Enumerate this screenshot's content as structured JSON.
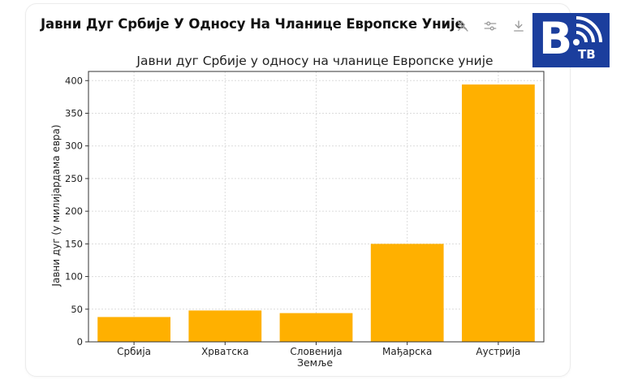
{
  "card": {
    "title": "Јавни Дуг Србије У Односу На Чланице Европске Уније"
  },
  "toolbar": {
    "icons": [
      "pin-off-icon",
      "sliders-icon",
      "download-icon"
    ]
  },
  "logo": {
    "letter": "B",
    "sub": "ТВ",
    "bg_color": "#1b3e9d"
  },
  "chart_data": {
    "type": "bar",
    "title": "Јавни дуг Србије у односу на чланице Европске уније",
    "xlabel": "Земље",
    "ylabel": "Јавни дуг (у милијардама евра)",
    "categories": [
      "Србија",
      "Хрватска",
      "Словенија",
      "Мађарска",
      "Аустрија"
    ],
    "values": [
      38,
      48,
      44,
      150,
      394
    ],
    "ylim": [
      0,
      414
    ],
    "yticks": [
      0,
      50,
      100,
      150,
      200,
      250,
      300,
      350,
      400
    ],
    "grid": true,
    "bar_color": "#FFB000"
  }
}
